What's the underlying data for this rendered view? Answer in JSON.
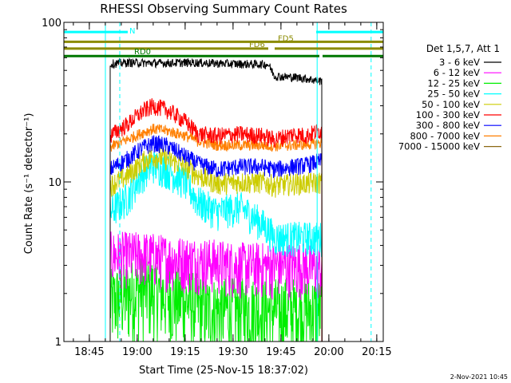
{
  "chart_data": {
    "type": "line",
    "title": "RHESSI Observing Summary Count Rates",
    "xlabel": "Start Time (25-Nov-15 18:37:02)",
    "ylabel": "Count Rate (s⁻¹ detector⁻¹)",
    "y_scale": "log",
    "ylim": [
      1,
      100
    ],
    "xlim_minutes_after_start": [
      0,
      100
    ],
    "x_ticks": [
      {
        "label": "18:45",
        "t": 7.97
      },
      {
        "label": "19:00",
        "t": 22.97
      },
      {
        "label": "19:15",
        "t": 37.97
      },
      {
        "label": "19:30",
        "t": 52.97
      },
      {
        "label": "19:45",
        "t": 67.97
      },
      {
        "label": "20:00",
        "t": 82.97
      },
      {
        "label": "20:15",
        "t": 97.97
      }
    ],
    "y_ticks": [
      {
        "label": "1",
        "v": 1
      },
      {
        "label": "10",
        "v": 10
      },
      {
        "label": "100",
        "v": 100
      }
    ],
    "legend_title": "Det 1,5,7, Att 1",
    "legend_position": "right",
    "series": [
      {
        "name": "3 - 6 keV",
        "color": "#000000",
        "points": [
          [
            14.5,
            55
          ],
          [
            20,
            56
          ],
          [
            30,
            55.5
          ],
          [
            40,
            56
          ],
          [
            52,
            55
          ],
          [
            64,
            54.5
          ],
          [
            66,
            46
          ],
          [
            74,
            45
          ],
          [
            80,
            43
          ]
        ]
      },
      {
        "name": "6 - 12 keV",
        "color": "#ff00ff",
        "points": [
          [
            14.5,
            3.5
          ],
          [
            25,
            3.5
          ],
          [
            35,
            3.3
          ],
          [
            45,
            3.2
          ],
          [
            55,
            3.0
          ],
          [
            65,
            3.0
          ],
          [
            75,
            3.0
          ],
          [
            80,
            2.9
          ]
        ]
      },
      {
        "name": "12 - 25 keV",
        "color": "#00ee00",
        "points": [
          [
            14.5,
            1.8
          ],
          [
            25,
            2.2
          ],
          [
            35,
            1.9
          ],
          [
            45,
            1.6
          ],
          [
            55,
            1.6
          ],
          [
            65,
            1.6
          ],
          [
            75,
            1.6
          ],
          [
            80,
            1.6
          ]
        ]
      },
      {
        "name": "25 - 50 keV",
        "color": "#00ffff",
        "points": [
          [
            14.5,
            6.5
          ],
          [
            20,
            8
          ],
          [
            25,
            11.5
          ],
          [
            28,
            12.8
          ],
          [
            32,
            12
          ],
          [
            38,
            10
          ],
          [
            42,
            7.5
          ],
          [
            48,
            6.5
          ],
          [
            55,
            7
          ],
          [
            62,
            5.5
          ],
          [
            66,
            4.5
          ],
          [
            70,
            4.5
          ],
          [
            76,
            4.5
          ],
          [
            80,
            4.5
          ]
        ]
      },
      {
        "name": "50 - 100 keV",
        "color": "#cccc00",
        "points": [
          [
            14.5,
            9.5
          ],
          [
            20,
            11
          ],
          [
            25,
            13.5
          ],
          [
            28,
            14.5
          ],
          [
            32,
            14
          ],
          [
            38,
            12.5
          ],
          [
            42,
            11
          ],
          [
            48,
            9.8
          ],
          [
            55,
            10
          ],
          [
            62,
            10
          ],
          [
            66,
            9.5
          ],
          [
            72,
            9.8
          ],
          [
            76,
            9.8
          ],
          [
            80,
            10
          ]
        ]
      },
      {
        "name": "100 - 300 keV",
        "color": "#ff0000",
        "points": [
          [
            14.5,
            19.5
          ],
          [
            20,
            23
          ],
          [
            25,
            28
          ],
          [
            28,
            30
          ],
          [
            32,
            28.5
          ],
          [
            38,
            24
          ],
          [
            42,
            20
          ],
          [
            48,
            19.5
          ],
          [
            55,
            20
          ],
          [
            62,
            19.5
          ],
          [
            66,
            18.5
          ],
          [
            72,
            20
          ],
          [
            76,
            19.5
          ],
          [
            80,
            21
          ]
        ]
      },
      {
        "name": "300 - 800 keV",
        "color": "#0000ff",
        "points": [
          [
            14.5,
            12
          ],
          [
            20,
            14
          ],
          [
            25,
            16.5
          ],
          [
            28,
            17.5
          ],
          [
            32,
            17
          ],
          [
            38,
            14.5
          ],
          [
            42,
            13
          ],
          [
            48,
            12
          ],
          [
            55,
            12.5
          ],
          [
            62,
            12.5
          ],
          [
            66,
            12
          ],
          [
            72,
            12.5
          ],
          [
            76,
            12.8
          ],
          [
            80,
            13.5
          ]
        ]
      },
      {
        "name": "800 - 7000 keV",
        "color": "#ff7f00",
        "points": [
          [
            14.5,
            16.5
          ],
          [
            20,
            18.5
          ],
          [
            25,
            20.5
          ],
          [
            28,
            21.5
          ],
          [
            32,
            21
          ],
          [
            38,
            19.5
          ],
          [
            42,
            18
          ],
          [
            48,
            17
          ],
          [
            55,
            17
          ],
          [
            62,
            17
          ],
          [
            66,
            16.8
          ],
          [
            72,
            17
          ],
          [
            76,
            17.2
          ],
          [
            80,
            17.5
          ]
        ]
      },
      {
        "name": "7000 - 15000 keV",
        "color": "#8b6914",
        "points": []
      }
    ],
    "annotations": [
      {
        "label": "N",
        "color": "#00ffff",
        "level": 87,
        "start": 0,
        "end": 20
      },
      {
        "label": "",
        "color": "#00ffff",
        "level": 87,
        "start": 79,
        "end": 100
      },
      {
        "label": "FD5",
        "color": "#8b8b00",
        "level": 75.5,
        "start": 0,
        "end": 100
      },
      {
        "label": "FD6",
        "color": "#8b8b00",
        "level": 68.5,
        "start": 0,
        "end": 64
      },
      {
        "label": "",
        "color": "#8b8b00",
        "level": 68.5,
        "start": 66,
        "end": 100
      },
      {
        "label": "RD0",
        "color": "#007700",
        "level": 61.5,
        "start": 0,
        "end": 80
      },
      {
        "label": "",
        "color": "#007700",
        "level": 61.5,
        "start": 81,
        "end": 100
      }
    ],
    "markers": [
      {
        "color": "#00ffff",
        "style": "solid",
        "t": 13.0
      },
      {
        "color": "#00ffff",
        "style": "dashed",
        "t": 17.5
      },
      {
        "color": "#00ffff",
        "style": "solid",
        "t": 79.3
      },
      {
        "color": "#00ffff",
        "style": "dashed",
        "t": 96.2
      }
    ],
    "data_start": 14.5,
    "data_end": 80.8
  },
  "timestamp": "2-Nov-2021 10:45"
}
